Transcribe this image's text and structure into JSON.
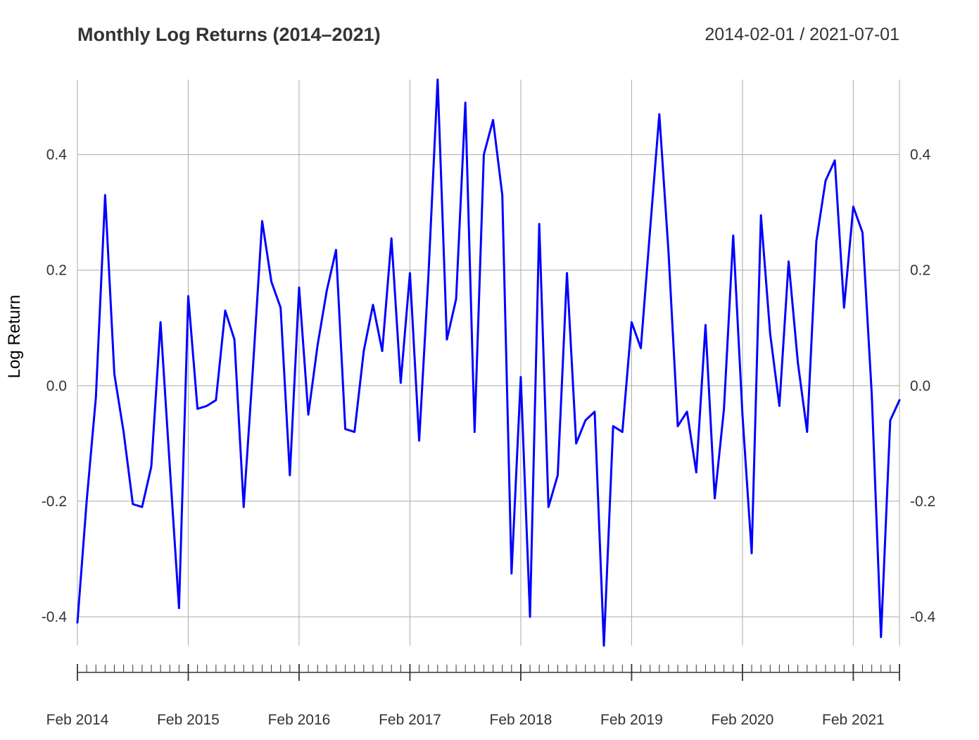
{
  "chart_data": {
    "type": "line",
    "title": "Monthly Log Returns (2014–2021)",
    "date_range": "2014-02-01 / 2021-07-01",
    "xlabel": "",
    "ylabel": "Log Return",
    "grid": true,
    "line_color": "#0000ff",
    "grid_color": "#aaaaaa",
    "text_color": "#333333",
    "ylim": [
      -0.45,
      0.53
    ],
    "y_ticks": [
      -0.4,
      -0.2,
      0.0,
      0.2,
      0.4
    ],
    "y_tick_labels": [
      "-0.4",
      "-0.2",
      "0.0",
      "0.2",
      "0.4"
    ],
    "x_ticks": [
      "2014-02",
      "2015-02",
      "2016-02",
      "2017-02",
      "2018-02",
      "2019-02",
      "2020-02",
      "2021-02"
    ],
    "x_tick_labels": [
      "Feb 2014",
      "Feb 2015",
      "Feb 2016",
      "Feb 2017",
      "Feb 2018",
      "Feb 2019",
      "Feb 2020",
      "Feb 2021"
    ],
    "x_start": "2014-02",
    "x_end": "2021-07",
    "series": [
      {
        "values": [
          -0.41,
          -0.2,
          -0.02,
          0.33,
          0.02,
          -0.08,
          -0.205,
          -0.21,
          -0.14,
          0.11,
          -0.14,
          -0.385,
          0.155,
          -0.04,
          -0.035,
          -0.025,
          0.13,
          0.08,
          -0.21,
          0.03,
          0.285,
          0.18,
          0.135,
          -0.155,
          0.17,
          -0.05,
          0.07,
          0.165,
          0.235,
          -0.075,
          -0.08,
          0.06,
          0.14,
          0.06,
          0.255,
          0.005,
          0.195,
          -0.095,
          0.19,
          0.53,
          0.08,
          0.15,
          0.49,
          -0.08,
          0.4,
          0.46,
          0.33,
          -0.325,
          0.015,
          -0.4,
          0.28,
          -0.21,
          -0.155,
          0.195,
          -0.1,
          -0.06,
          -0.045,
          -0.45,
          -0.07,
          -0.08,
          0.11,
          0.065,
          0.27,
          0.47,
          0.23,
          -0.07,
          -0.045,
          -0.15,
          0.105,
          -0.195,
          -0.04,
          0.26,
          -0.05,
          -0.29,
          0.295,
          0.09,
          -0.035,
          0.215,
          0.04,
          -0.08,
          0.25,
          0.355,
          0.39,
          0.135,
          0.31,
          0.265,
          -0.015,
          -0.435,
          -0.06,
          -0.025
        ]
      }
    ]
  }
}
